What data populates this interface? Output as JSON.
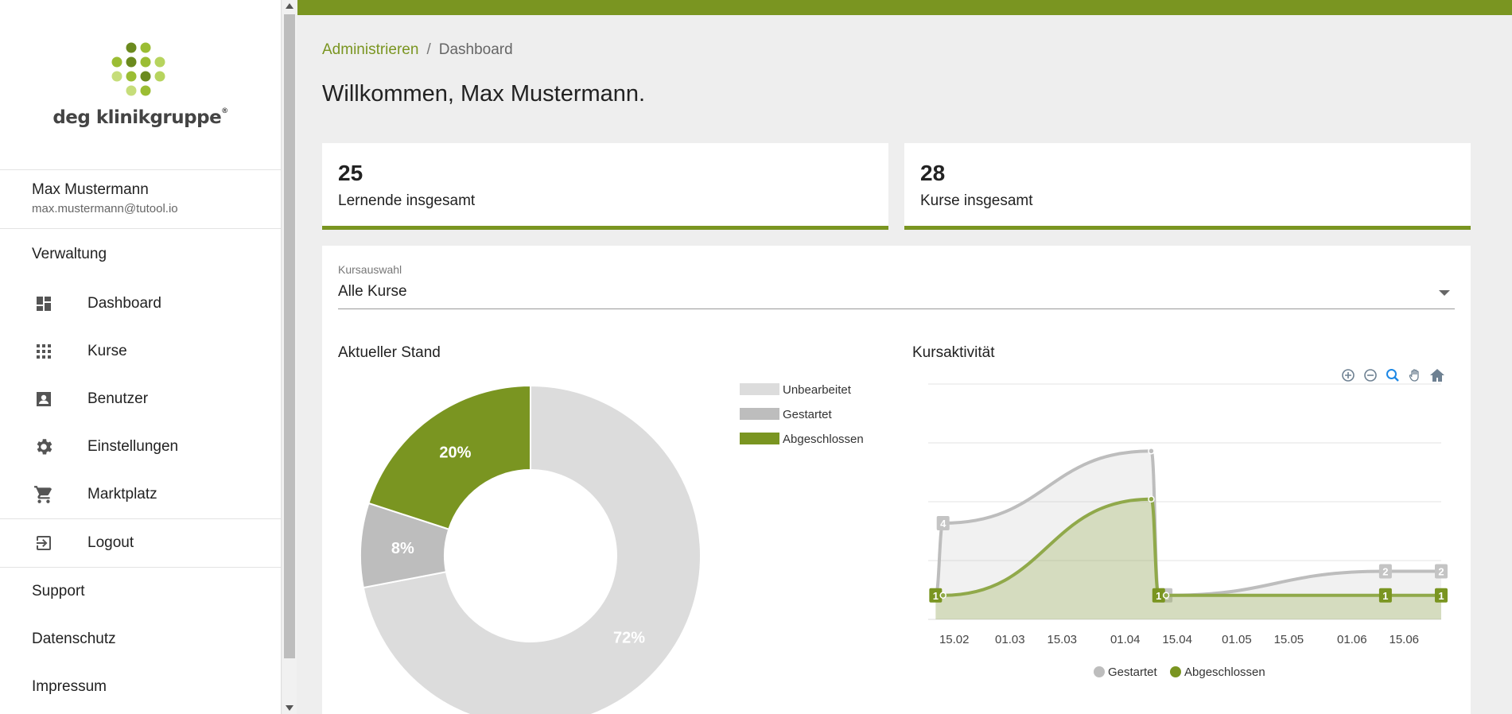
{
  "sidebar": {
    "logo_text": "deg klinikgruppe",
    "logo_mark": "®",
    "user": {
      "name": "Max Mustermann",
      "email": "max.mustermann@tutool.io"
    },
    "section": "Verwaltung",
    "items": [
      {
        "label": "Dashboard",
        "icon": "dashboard-icon"
      },
      {
        "label": "Kurse",
        "icon": "grid-icon"
      },
      {
        "label": "Benutzer",
        "icon": "user-card-icon"
      },
      {
        "label": "Einstellungen",
        "icon": "gear-icon"
      },
      {
        "label": "Marktplatz",
        "icon": "cart-icon"
      }
    ],
    "logout": {
      "label": "Logout",
      "icon": "logout-icon"
    },
    "footer": [
      "Support",
      "Datenschutz",
      "Impressum"
    ]
  },
  "breadcrumb": {
    "parent": "Administrieren",
    "separator": "/",
    "current": "Dashboard"
  },
  "welcome": "Willkommen, Max Mustermann.",
  "stats": [
    {
      "value": "25",
      "label": "Lernende insgesamt"
    },
    {
      "value": "28",
      "label": "Kurse insgesamt"
    }
  ],
  "course_select": {
    "label": "Kursauswahl",
    "value": "Alle Kurse"
  },
  "colors": {
    "accent": "#7a9521",
    "unbearbeitet": "#dcdcdc",
    "gestartet": "#bdbdbd",
    "abgeschlossen": "#7a9521"
  },
  "chart_data": [
    {
      "type": "pie",
      "title": "Aktueller Stand",
      "labels": [
        "Unbearbeitet",
        "Gestartet",
        "Abgeschlossen"
      ],
      "values": [
        72,
        8,
        20
      ],
      "value_labels": [
        "72%",
        "8%",
        "20%"
      ],
      "legend": "right"
    },
    {
      "type": "area",
      "title": "Kursaktivität",
      "x_ticks": [
        "15.02",
        "01.03",
        "15.03",
        "01.04",
        "15.04",
        "01.05",
        "15.05",
        "01.06",
        "15.06"
      ],
      "x": [
        "2024-02-10",
        "2024-02-12",
        "2024-04-08",
        "2024-04-10",
        "2024-04-12",
        "2024-06-10",
        "2024-06-25"
      ],
      "series": [
        {
          "name": "Gestartet",
          "values": [
            1,
            4,
            7,
            1,
            1,
            2,
            2
          ],
          "data_labels": [
            "",
            "4",
            "",
            "",
            "1",
            "2",
            "2"
          ]
        },
        {
          "name": "Abgeschlossen",
          "values": [
            1,
            1,
            5,
            1,
            1,
            1,
            1
          ],
          "data_labels": [
            "1",
            "",
            "",
            "1",
            "",
            "1",
            "1"
          ]
        }
      ],
      "ylim": [
        0,
        8
      ],
      "grid": true,
      "legend": "bottom"
    }
  ]
}
